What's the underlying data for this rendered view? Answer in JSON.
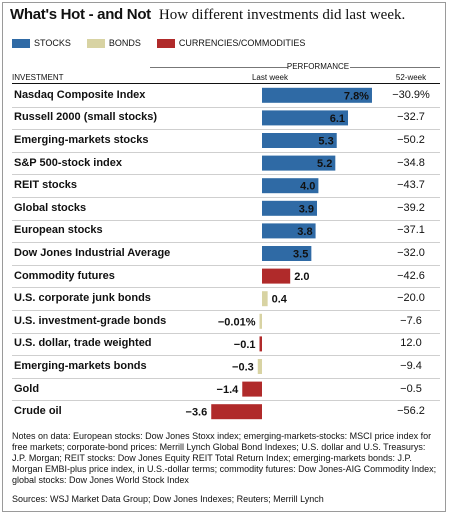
{
  "title": "What's Hot - and Not",
  "subtitle": "How different investments did last week.",
  "legend": [
    {
      "label": "STOCKS",
      "color": "#2f6aa5"
    },
    {
      "label": "BONDS",
      "color": "#d8d3a3"
    },
    {
      "label": "CURRENCIES/COMMODITIES",
      "color": "#b02a2a"
    }
  ],
  "headers": {
    "investment": "INVESTMENT",
    "performance": "PERFORMANCE",
    "last_week": "Last week",
    "week52": "52-week"
  },
  "chart_data": {
    "type": "bar",
    "orientation": "horizontal",
    "categories": [
      "Nasdaq Composite Index",
      "Russell 2000 (small stocks)",
      "Emerging-markets stocks",
      "S&P 500-stock index",
      "REIT stocks",
      "Global stocks",
      "European stocks",
      "Dow Jones Industrial Average",
      "Commodity futures",
      "U.S. corporate junk bonds",
      "U.S. investment-grade bonds",
      "U.S. dollar, trade weighted",
      "Emerging-markets bonds",
      "Gold",
      "Crude oil"
    ],
    "values": [
      7.8,
      6.1,
      5.3,
      5.2,
      4.0,
      3.9,
      3.8,
      3.5,
      2.0,
      0.4,
      -0.01,
      -0.1,
      -0.3,
      -1.4,
      -3.6
    ],
    "value_labels": [
      "7.8%",
      "6.1",
      "5.3",
      "5.2",
      "4.0",
      "3.9",
      "3.8",
      "3.5",
      "2.0",
      "0.4",
      "−0.01%",
      "−0.1",
      "−0.3",
      "−1.4",
      "−3.6"
    ],
    "groups": [
      "stocks",
      "stocks",
      "stocks",
      "stocks",
      "stocks",
      "stocks",
      "stocks",
      "stocks",
      "commodities",
      "bonds",
      "bonds",
      "commodities",
      "bonds",
      "commodities",
      "commodities"
    ],
    "week52": [
      "−30.9%",
      "−32.7",
      "−50.2",
      "−34.8",
      "−43.7",
      "−39.2",
      "−37.1",
      "−32.0",
      "−42.6",
      "−20.0",
      "−7.6",
      "12.0",
      "−9.4",
      "−0.5",
      "−56.2"
    ],
    "group_colors": {
      "stocks": "#2f6aa5",
      "bonds": "#d8d3a3",
      "commodities": "#b02a2a"
    },
    "xlim": [
      -4,
      8
    ]
  },
  "notes": "Notes on data: European stocks: Dow Jones Stoxx index; emerging-markets-stocks: MSCI price index for free markets; corporate-bond prices: Merrill Lynch Global Bond Indexes; U.S. dollar and U.S. Treasurys: J.P. Morgan; REIT stocks: Dow Jones Equity REIT Total Return Index; emerging-markets bonds: J.P. Morgan EMBI-plus price index, in U.S.-dollar terms; commodity futures: Dow Jones-AIG Commodity Index; global stocks: Dow Jones World Stock Index",
  "sources": "Sources: WSJ Market Data Group; Dow Jones Indexes; Reuters; Merrill Lynch"
}
